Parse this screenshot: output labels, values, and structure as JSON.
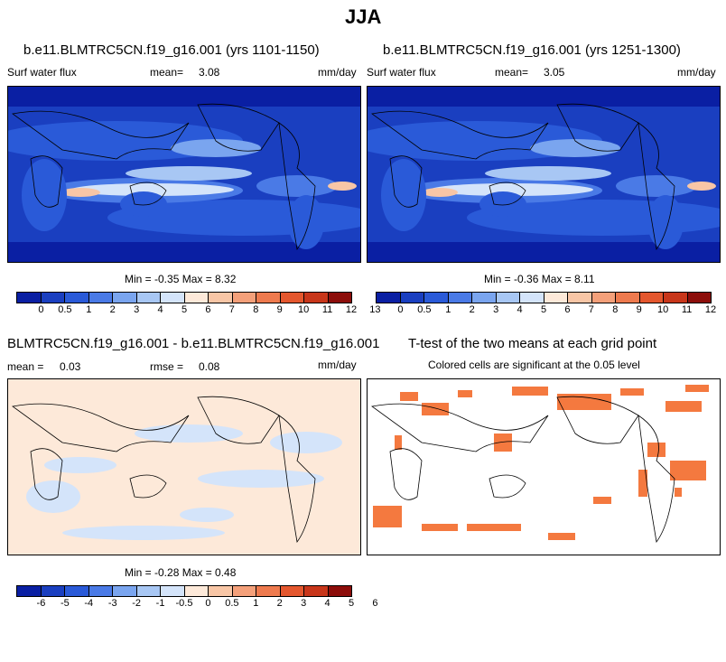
{
  "title": "JJA",
  "panels": [
    {
      "case": "b.e11.BLMTRC5CN.f19_g16.001 (yrs 1101-1150)",
      "variable": "Surf water flux",
      "mean_label": "mean=",
      "mean_value": "3.08",
      "units": "mm/day",
      "minmax": "Min =  -0.35 Max =  8.32"
    },
    {
      "case": "b.e11.BLMTRC5CN.f19_g16.001 (yrs 1251-1300)",
      "variable": "Surf water flux",
      "mean_label": "mean=",
      "mean_value": "3.05",
      "units": "mm/day",
      "minmax": "Min =  -0.36 Max =  8.11"
    }
  ],
  "diff": {
    "title": "BLMTRC5CN.f19_g16.001 - b.e11.BLMTRC5CN.f19_g16.001",
    "mean_label": "mean =",
    "mean_value": "0.03",
    "rmse_label": "rmse =",
    "rmse_value": "0.08",
    "units": "mm/day",
    "minmax": "Min =  -0.28 Max =  0.48"
  },
  "ttest": {
    "title": "T-test of the two means at each grid point",
    "subtitle": "Colored cells are significant at the 0.05 level"
  },
  "colorbar_abs": {
    "colors": [
      "#0a1fa3",
      "#1a3fc0",
      "#2a5ad8",
      "#4a7ae6",
      "#7aa5ef",
      "#a8c7f4",
      "#d4e4fa",
      "#fde9d9",
      "#f8c6a6",
      "#f4a07a",
      "#ee7a4e",
      "#e4572e",
      "#c8361a",
      "#8c0d0a"
    ],
    "ticks": [
      "0",
      "0.5",
      "1",
      "2",
      "3",
      "4",
      "5",
      "6",
      "7",
      "8",
      "9",
      "10",
      "11",
      "12",
      "13"
    ]
  },
  "colorbar_diff": {
    "colors": [
      "#0a1fa3",
      "#1a3fc0",
      "#2a5ad8",
      "#4a7ae6",
      "#7aa5ef",
      "#a8c7f4",
      "#d4e4fa",
      "#fde9d9",
      "#f8c6a6",
      "#f4a07a",
      "#ee7a4e",
      "#e4572e",
      "#c8361a",
      "#8c0d0a"
    ],
    "ticks": [
      "-6",
      "-5",
      "-4",
      "-3",
      "-2",
      "-1",
      "-0.5",
      "0",
      "0.5",
      "1",
      "2",
      "3",
      "4",
      "5",
      "6"
    ]
  }
}
